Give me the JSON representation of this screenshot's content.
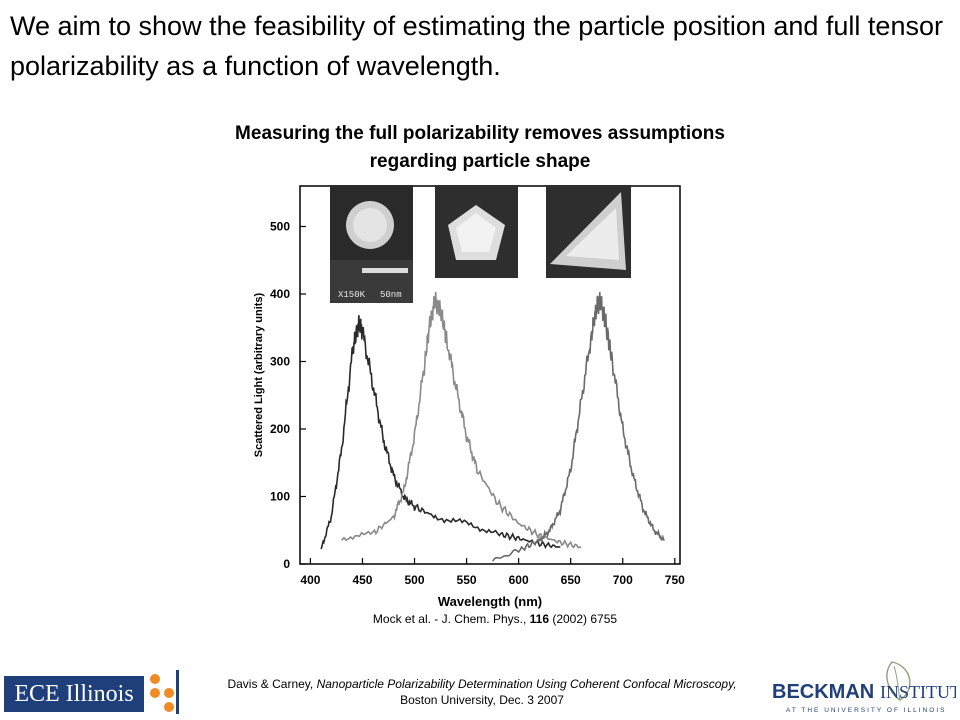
{
  "slide": {
    "title": "We aim to show the feasibility of estimating the particle position and full tensor polarizability as a function of wavelength.",
    "subtitle_line1": "Measuring the full polarizability removes assumptions",
    "subtitle_line2": "regarding particle shape",
    "citation_prefix": "Mock et al. - J. Chem. Phys., ",
    "citation_volume": "116",
    "citation_suffix": " (2002)  6755"
  },
  "footer": {
    "left_logo_text": "ECE Illinois",
    "line1_authors": "Davis & Carney, ",
    "line1_title": "Nanoparticle Polarizability Determination Using Coherent Confocal Microscopy,",
    "line2": "Boston University, Dec. 3 2007",
    "right_logo_main": "BECKMAN",
    "right_logo_second": "INSTITUTE",
    "right_logo_sub": "AT THE UNIVERSITY OF ILLINOIS"
  },
  "chart_data": {
    "type": "line",
    "xlabel": "Wavelength (nm)",
    "ylabel": "Scattered Light (arbitrary units)",
    "xlim": [
      390,
      755
    ],
    "ylim": [
      0,
      560
    ],
    "xticks": [
      400,
      450,
      500,
      550,
      600,
      650,
      700,
      750
    ],
    "yticks": [
      0,
      100,
      200,
      300,
      400,
      500
    ],
    "series": [
      {
        "peak_x": 447,
        "peak_y": 355,
        "color": "#2a2a2a",
        "x": [
          410,
          420,
          430,
          440,
          445,
          447,
          450,
          460,
          470,
          480,
          490,
          500,
          520,
          550,
          580,
          600,
          620,
          640
        ],
        "y": [
          20,
          70,
          170,
          310,
          350,
          355,
          345,
          265,
          185,
          130,
          98,
          85,
          70,
          60,
          45,
          38,
          30,
          25
        ]
      },
      {
        "peak_x": 520,
        "peak_y": 390,
        "color": "#8a8a8a",
        "x": [
          430,
          460,
          480,
          490,
          500,
          510,
          515,
          520,
          525,
          530,
          540,
          550,
          560,
          580,
          600,
          620,
          640,
          660
        ],
        "y": [
          38,
          45,
          70,
          110,
          190,
          300,
          360,
          390,
          375,
          340,
          260,
          190,
          140,
          90,
          60,
          42,
          32,
          25
        ]
      },
      {
        "peak_x": 678,
        "peak_y": 390,
        "color": "#6a6a6a",
        "x": [
          575,
          600,
          620,
          630,
          640,
          650,
          660,
          670,
          675,
          678,
          682,
          690,
          700,
          710,
          720,
          730,
          740
        ],
        "y": [
          5,
          20,
          35,
          50,
          80,
          140,
          240,
          340,
          380,
          390,
          370,
          300,
          200,
          130,
          80,
          50,
          35
        ]
      }
    ],
    "inset_labels": [
      "X150K",
      "50nm"
    ]
  }
}
